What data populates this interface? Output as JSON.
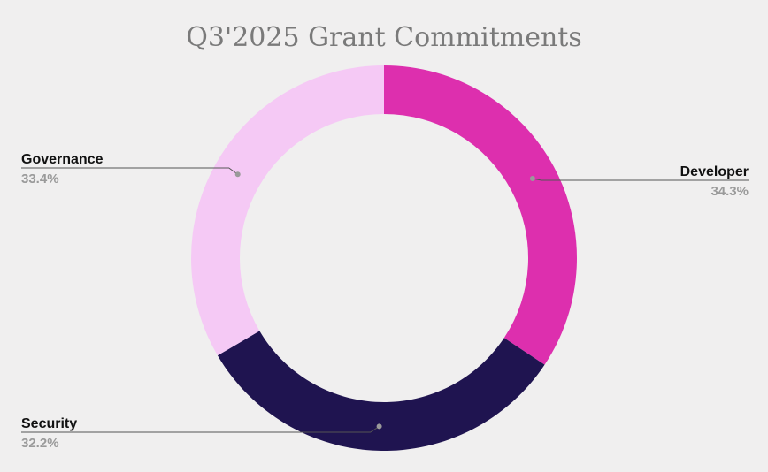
{
  "chart_data": {
    "type": "pie",
    "title": "Q3'2025 Grant Commitments",
    "categories": [
      "Developer",
      "Security",
      "Governance"
    ],
    "values": [
      34.3,
      32.2,
      33.4
    ],
    "value_labels": [
      "34.3%",
      "32.2%",
      "33.4%"
    ],
    "colors": [
      "#dd2fae",
      "#1f1450",
      "#f5c9f5"
    ],
    "donut": true,
    "start_angle_deg": 0,
    "direction": "clockwise",
    "legend": "none",
    "leader_line_color": "#555555",
    "label_sides": [
      "right",
      "left",
      "left"
    ]
  }
}
